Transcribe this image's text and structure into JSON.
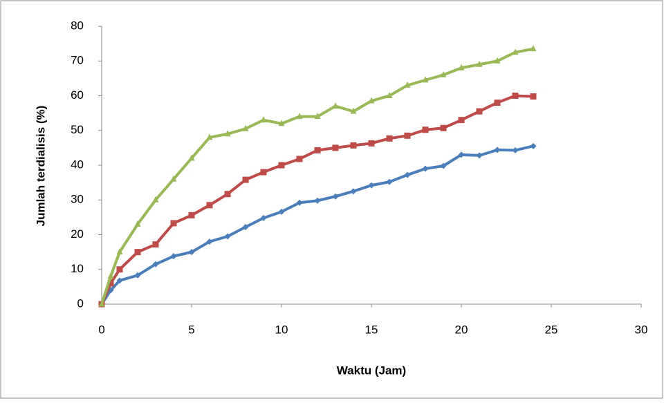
{
  "chart_data": {
    "type": "line",
    "x_label": "Waktu (Jam)",
    "y_label": "Jumlah terdialisis (%)",
    "x": [
      0,
      0.5,
      1,
      2,
      3,
      4,
      5,
      6,
      7,
      8,
      9,
      10,
      11,
      12,
      13,
      14,
      15,
      16,
      17,
      18,
      19,
      20,
      21,
      22,
      23,
      24
    ],
    "series": [
      {
        "color": "#4a7ebb",
        "marker": "diamond",
        "values": [
          0,
          4,
          6.8,
          8.3,
          11.5,
          13.8,
          15,
          18,
          19.5,
          22.2,
          24.8,
          26.6,
          29.2,
          29.8,
          31,
          32.5,
          34.2,
          35.2,
          37.2,
          39,
          39.8,
          43,
          42.8,
          44.4,
          44.3,
          45.5
        ]
      },
      {
        "color": "#be4b48",
        "marker": "square",
        "values": [
          0,
          6,
          10,
          15,
          17.2,
          23.3,
          25.6,
          28.5,
          31.7,
          35.8,
          38,
          40,
          41.8,
          44.3,
          45,
          45.7,
          46.3,
          47.7,
          48.5,
          50.2,
          50.7,
          53,
          55.5,
          58,
          60,
          59.8
        ]
      },
      {
        "color": "#98b954",
        "marker": "triangle",
        "values": [
          0,
          8,
          15,
          23,
          30,
          36,
          42,
          48,
          49,
          50.5,
          53,
          52,
          54,
          54,
          57,
          55.5,
          58.5,
          60,
          63,
          64.5,
          66,
          68,
          69,
          70,
          72.5,
          73.5
        ]
      }
    ],
    "xlim": [
      0,
      30
    ],
    "xticks": [
      0,
      5,
      10,
      15,
      20,
      25,
      30
    ],
    "ylim": [
      0,
      80
    ],
    "yticks": [
      0,
      10,
      20,
      30,
      40,
      50,
      60,
      70,
      80
    ],
    "grid": false
  }
}
